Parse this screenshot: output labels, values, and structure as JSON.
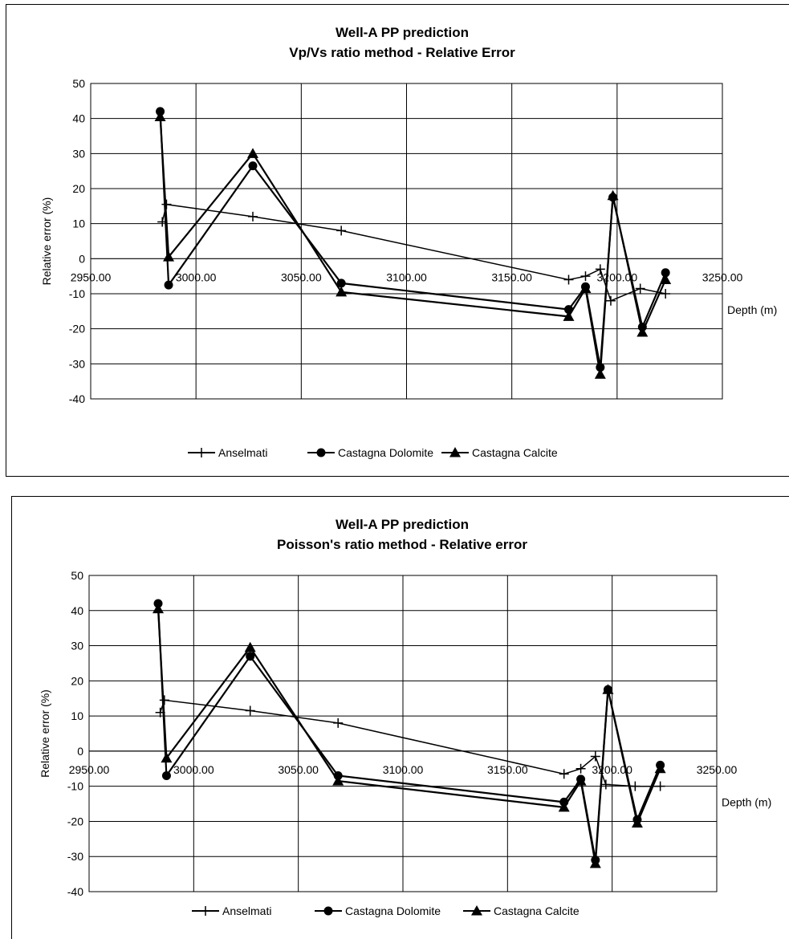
{
  "chart_data": [
    {
      "type": "line",
      "title": "Well-A PP prediction",
      "subtitle": "Vp/Vs ratio method  - Relative Error",
      "xlabel": "Depth (m)",
      "ylabel": "Relative error (%)",
      "xlim": [
        2950,
        3250
      ],
      "ylim": [
        -40,
        50
      ],
      "xticks": [
        "2950.00",
        "3000.00",
        "3050.00",
        "3100.00",
        "3150.00",
        "3200.00",
        "3250.00"
      ],
      "yticks": [
        "50",
        "40",
        "30",
        "20",
        "10",
        "0",
        "-10",
        "-20",
        "-30",
        "-40"
      ],
      "grid": true,
      "legend_position": "bottom",
      "series": [
        {
          "name": "Anselmati",
          "marker": "plus",
          "x": [
            2984,
            2986,
            3027,
            3069,
            3177,
            3185,
            3192,
            3197,
            3211,
            3223
          ],
          "y": [
            10.5,
            15.5,
            12,
            8,
            -6,
            -5,
            -3,
            -12,
            -8.5,
            -10
          ]
        },
        {
          "name": "Castagna Dolomite",
          "marker": "circle",
          "x": [
            2983,
            2987,
            3027,
            3069,
            3177,
            3185,
            3192,
            3198,
            3212,
            3223
          ],
          "y": [
            42,
            -7.5,
            26.5,
            -7,
            -14.5,
            -8,
            -31,
            17.5,
            -19.5,
            -4
          ]
        },
        {
          "name": "Castagna Calcite",
          "marker": "triangle",
          "x": [
            2983,
            2987,
            3027,
            3069,
            3177,
            3185,
            3192,
            3198,
            3212,
            3223
          ],
          "y": [
            40.5,
            0.5,
            30,
            -9.5,
            -16.5,
            -8.5,
            -33,
            18,
            -21,
            -6
          ]
        }
      ]
    },
    {
      "type": "line",
      "title": "Well-A PP prediction",
      "subtitle": "Poisson's ratio method - Relative error",
      "xlabel": "Depth (m)",
      "ylabel": "Relative error (%)",
      "xlim": [
        2950,
        3250
      ],
      "ylim": [
        -40,
        50
      ],
      "xticks": [
        "2950.00",
        "3000.00",
        "3050.00",
        "3100.00",
        "3150.00",
        "3200.00",
        "3250.00"
      ],
      "yticks": [
        "50",
        "40",
        "30",
        "20",
        "10",
        "0",
        "-10",
        "-20",
        "-30",
        "-40"
      ],
      "grid": true,
      "legend_position": "bottom",
      "series": [
        {
          "name": "Anselmati",
          "marker": "plus",
          "x": [
            2984,
            2986,
            3027,
            3069,
            3177,
            3185,
            3192,
            3197,
            3211,
            3223
          ],
          "y": [
            11,
            14.5,
            11.5,
            8,
            -6.5,
            -5,
            -1.5,
            -9.5,
            -10,
            -10
          ]
        },
        {
          "name": "Castagna Dolomite",
          "marker": "circle",
          "x": [
            2983,
            2987,
            3027,
            3069,
            3177,
            3185,
            3192,
            3198,
            3212,
            3223
          ],
          "y": [
            42,
            -7,
            27,
            -7,
            -14.5,
            -8,
            -31,
            17.5,
            -19.5,
            -4
          ]
        },
        {
          "name": "Castagna Calcite",
          "marker": "triangle",
          "x": [
            2983,
            2987,
            3027,
            3069,
            3177,
            3185,
            3192,
            3198,
            3212,
            3223
          ],
          "y": [
            40.5,
            -2,
            29.5,
            -8.5,
            -16,
            -8.5,
            -32,
            17.5,
            -20.5,
            -5
          ]
        }
      ]
    }
  ]
}
